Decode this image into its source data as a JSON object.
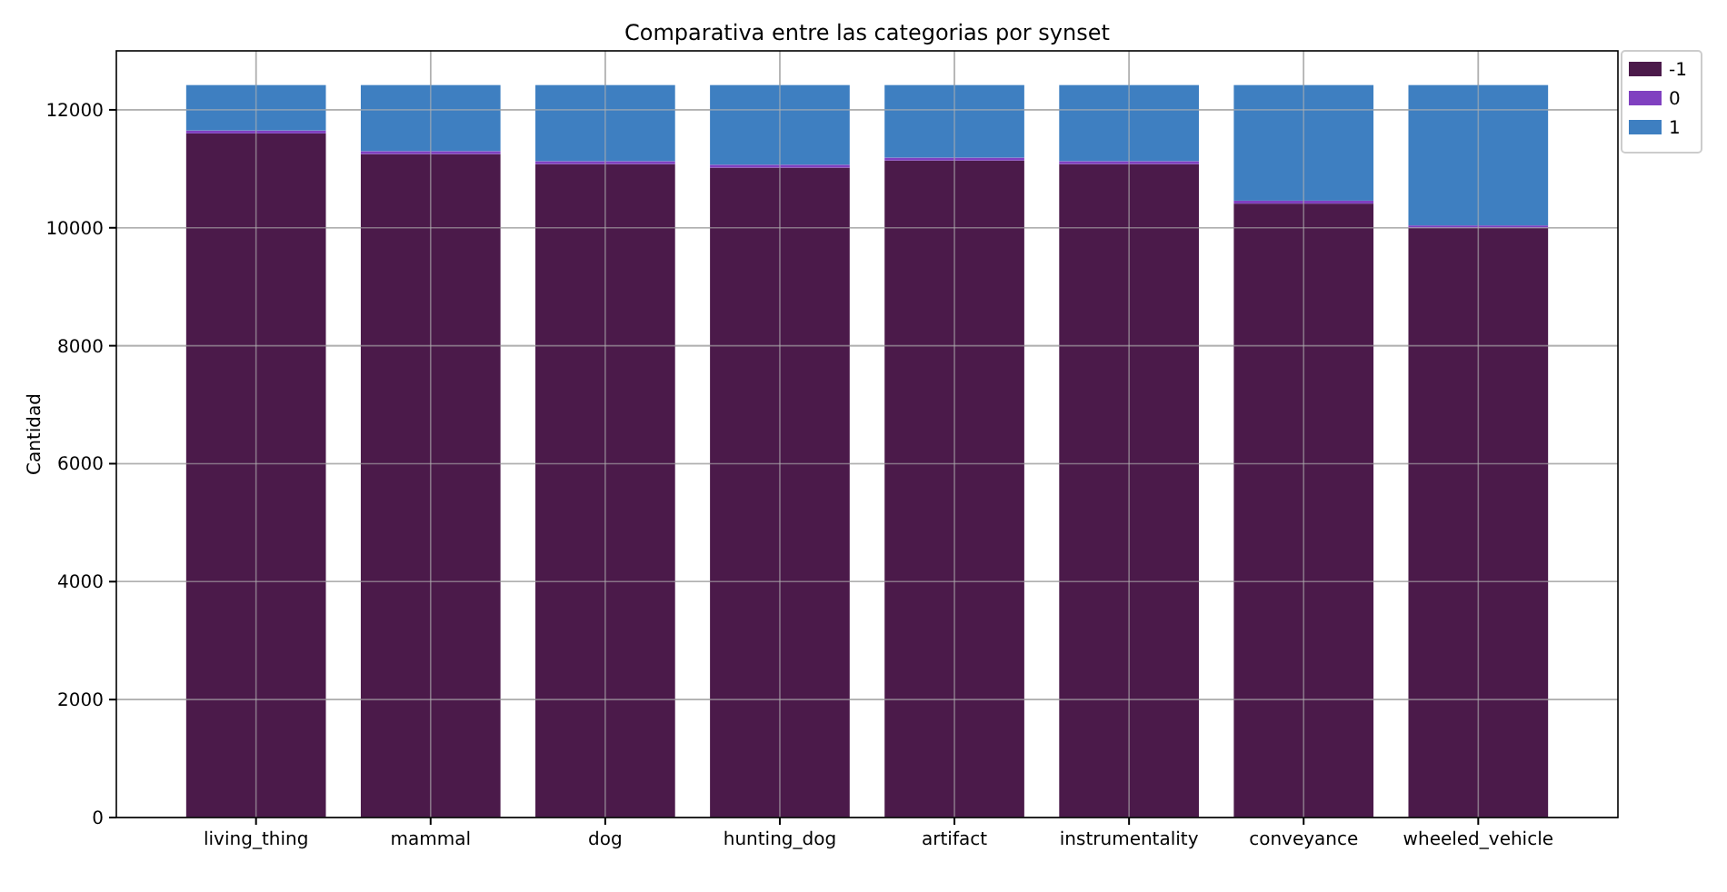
{
  "chart_data": {
    "type": "bar",
    "title": "Comparativa entre las categorias por synset",
    "ylabel": "Cantidad",
    "categories": [
      "living_thing",
      "mammal",
      "dog",
      "hunting_dog",
      "artifact",
      "instrumentality",
      "conveyance",
      "wheeled_vehicle"
    ],
    "series": [
      {
        "name": "-1",
        "color": "#4b1a4a",
        "values": [
          11600,
          11250,
          11080,
          11020,
          11140,
          11080,
          10410,
          10000
        ]
      },
      {
        "name": "0",
        "color": "#8040c0",
        "values": [
          50,
          50,
          50,
          50,
          50,
          50,
          50,
          40
        ]
      },
      {
        "name": "1",
        "color": "#3e7fc1",
        "values": [
          770,
          1120,
          1290,
          1350,
          1230,
          1290,
          1960,
          2380
        ]
      }
    ],
    "stacked": true,
    "ylim": [
      0,
      13000
    ],
    "yticks": [
      0,
      2000,
      4000,
      6000,
      8000,
      10000,
      12000
    ],
    "grid": true,
    "legend": "top right"
  }
}
